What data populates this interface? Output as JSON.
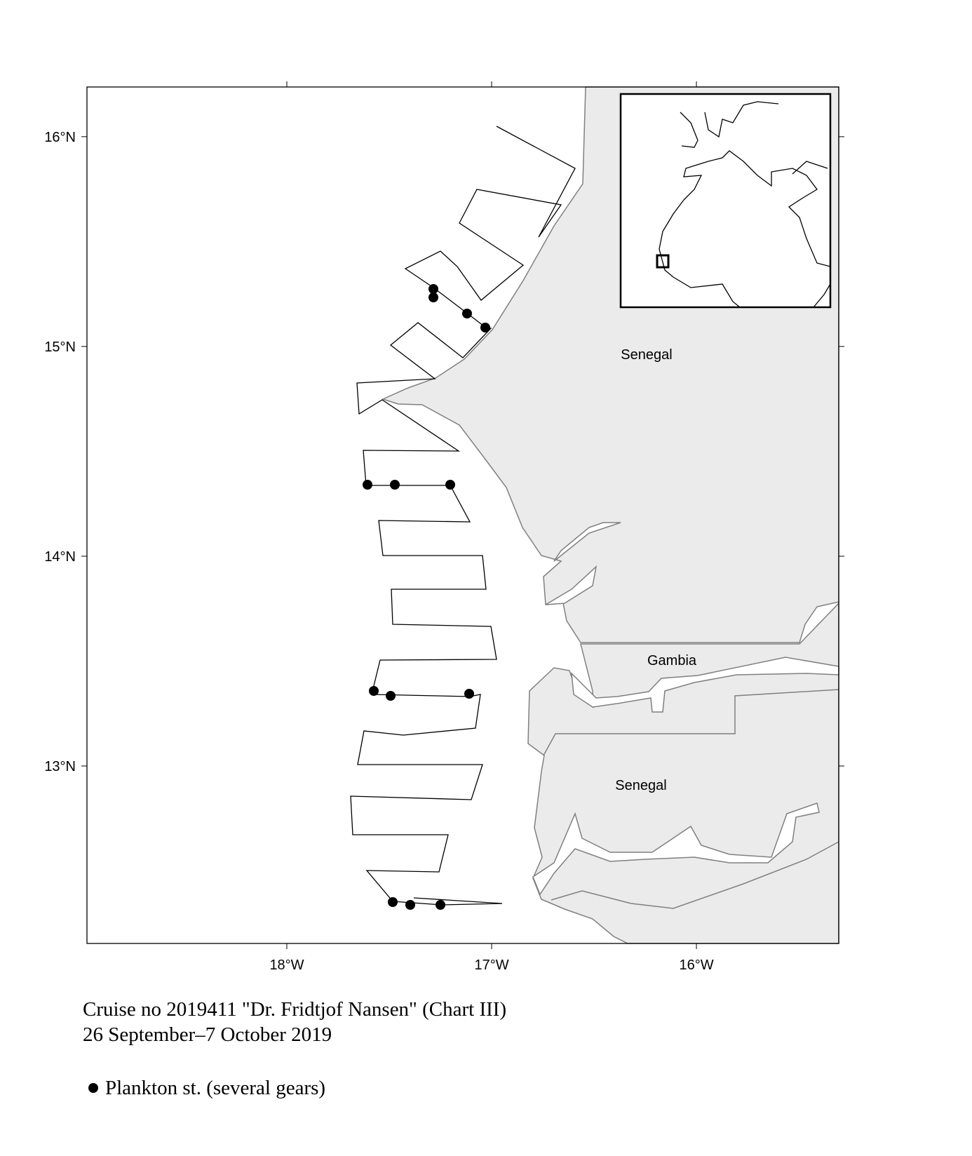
{
  "map": {
    "xlim": [
      -18.976,
      -15.305
    ],
    "ylim": [
      12.154,
      16.237
    ],
    "xticks": [
      {
        "value": -18,
        "label": "18°W"
      },
      {
        "value": -17,
        "label": "17°W"
      },
      {
        "value": -16,
        "label": "16°W"
      }
    ],
    "yticks": [
      {
        "value": 13,
        "label": "13°N"
      },
      {
        "value": 14,
        "label": "14°N"
      },
      {
        "value": 15,
        "label": "15°N"
      },
      {
        "value": 16,
        "label": "16°N"
      }
    ],
    "places": [
      "Senegal",
      "Gambia",
      "Senegal"
    ]
  },
  "caption": {
    "line1": "Cruise no 2019411  \"Dr. Fridtjof Nansen\" (Chart III)",
    "line2": "26 September–7 October 2019"
  },
  "legend": {
    "label": "Plankton st. (several gears)"
  }
}
